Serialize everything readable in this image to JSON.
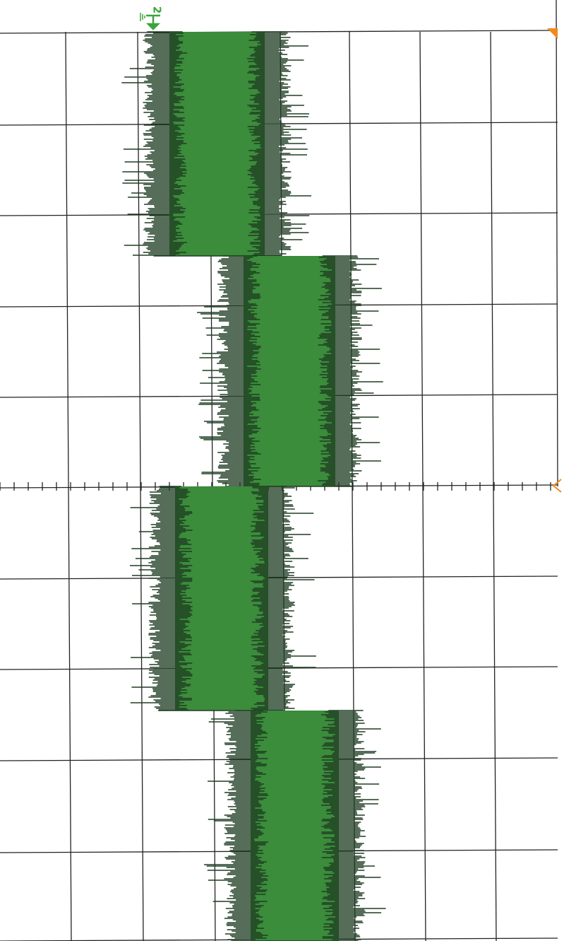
{
  "channel_marker": {
    "label": "2"
  }
}
